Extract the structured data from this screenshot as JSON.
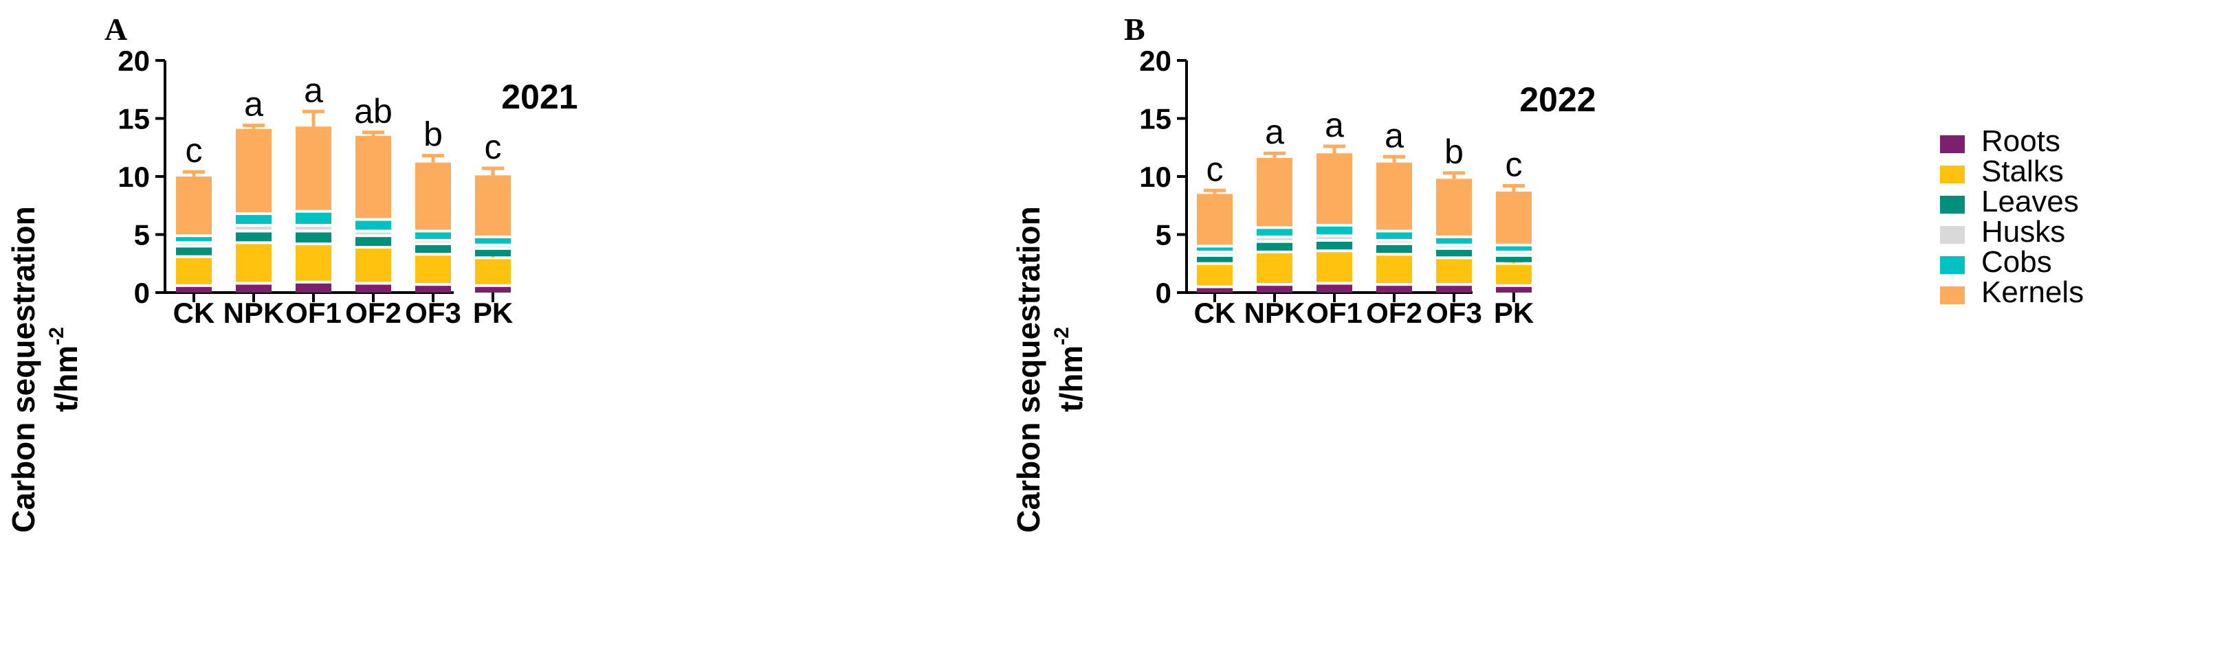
{
  "chart_data": [
    {
      "panel": "A",
      "type": "bar",
      "stacked": true,
      "title": "2021",
      "xlabel": "",
      "ylabel": "Carbon sequestration",
      "ylabel_unit": "t/hm",
      "ylabel_unit_sup": "-2",
      "ylim": [
        0,
        20
      ],
      "yticks": [
        0,
        5,
        10,
        15,
        20
      ],
      "ytick_labels": [
        "0",
        "5",
        "10",
        "15",
        "20"
      ],
      "categories": [
        "CK",
        "NPK",
        "OF1",
        "OF2",
        "OF3",
        "PK"
      ],
      "series": [
        {
          "name": "Roots",
          "values": [
            0.6,
            0.8,
            0.9,
            0.8,
            0.7,
            0.6
          ]
        },
        {
          "name": "Stalks",
          "values": [
            2.5,
            3.5,
            3.3,
            3.1,
            2.6,
            2.4
          ]
        },
        {
          "name": "Leaves",
          "values": [
            0.9,
            1.0,
            1.1,
            1.0,
            0.9,
            0.8
          ]
        },
        {
          "name": "Husks",
          "values": [
            0.3,
            0.5,
            0.5,
            0.4,
            0.3,
            0.3
          ]
        },
        {
          "name": "Cobs",
          "values": [
            0.6,
            1.0,
            1.2,
            1.0,
            0.8,
            0.7
          ]
        },
        {
          "name": "Kernels",
          "values": [
            5.1,
            7.3,
            7.3,
            7.2,
            5.9,
            5.3
          ]
        }
      ],
      "error_bars": [
        0.4,
        0.3,
        1.3,
        0.3,
        0.6,
        0.6
      ],
      "stalk_error_bars": [
        0,
        0,
        0,
        0,
        0,
        0.3
      ],
      "significance": [
        "c",
        "a",
        "a",
        "ab",
        "b",
        "c"
      ]
    },
    {
      "panel": "B",
      "type": "bar",
      "stacked": true,
      "title": "2022",
      "xlabel": "",
      "ylabel": "Carbon sequestration",
      "ylabel_unit": "t/hm",
      "ylabel_unit_sup": "-2",
      "ylim": [
        0,
        20
      ],
      "yticks": [
        0,
        5,
        10,
        15,
        20
      ],
      "ytick_labels": [
        "0",
        "5",
        "10",
        "15",
        "20"
      ],
      "categories": [
        "CK",
        "NPK",
        "OF1",
        "OF2",
        "OF3",
        "PK"
      ],
      "series": [
        {
          "name": "Roots",
          "values": [
            0.5,
            0.7,
            0.8,
            0.7,
            0.7,
            0.6
          ]
        },
        {
          "name": "Stalks",
          "values": [
            2.0,
            2.8,
            2.8,
            2.6,
            2.3,
            1.9
          ]
        },
        {
          "name": "Leaves",
          "values": [
            0.7,
            0.9,
            0.9,
            0.9,
            0.8,
            0.7
          ]
        },
        {
          "name": "Husks",
          "values": [
            0.3,
            0.4,
            0.4,
            0.3,
            0.3,
            0.3
          ]
        },
        {
          "name": "Cobs",
          "values": [
            0.5,
            0.8,
            0.9,
            0.8,
            0.7,
            0.6
          ]
        },
        {
          "name": "Kernels",
          "values": [
            4.5,
            6.0,
            6.2,
            5.9,
            5.0,
            4.6
          ]
        }
      ],
      "error_bars": [
        0.3,
        0.4,
        0.6,
        0.5,
        0.5,
        0.5
      ],
      "stalk_error_bars": [
        0,
        0,
        0,
        0,
        0,
        0.2
      ],
      "significance": [
        "c",
        "a",
        "a",
        "a",
        "b",
        "c"
      ]
    }
  ],
  "legend": {
    "items": [
      {
        "label": "Roots",
        "color": "#7d1f6e"
      },
      {
        "label": "Stalks",
        "color": "#ffc20e"
      },
      {
        "label": "Leaves",
        "color": "#008f7a"
      },
      {
        "label": "Husks",
        "color": "#d9d9d9"
      },
      {
        "label": "Cobs",
        "color": "#00c2c2"
      },
      {
        "label": "Kernels",
        "color": "#fdab5c"
      }
    ]
  },
  "colors": {
    "Roots": "#7d1f6e",
    "Stalks": "#ffc20e",
    "Leaves": "#008f7a",
    "Husks": "#d9d9d9",
    "Cobs": "#00c2c2",
    "Kernels": "#fdab5c",
    "axis": "#000000",
    "error": "#fdab5c"
  }
}
